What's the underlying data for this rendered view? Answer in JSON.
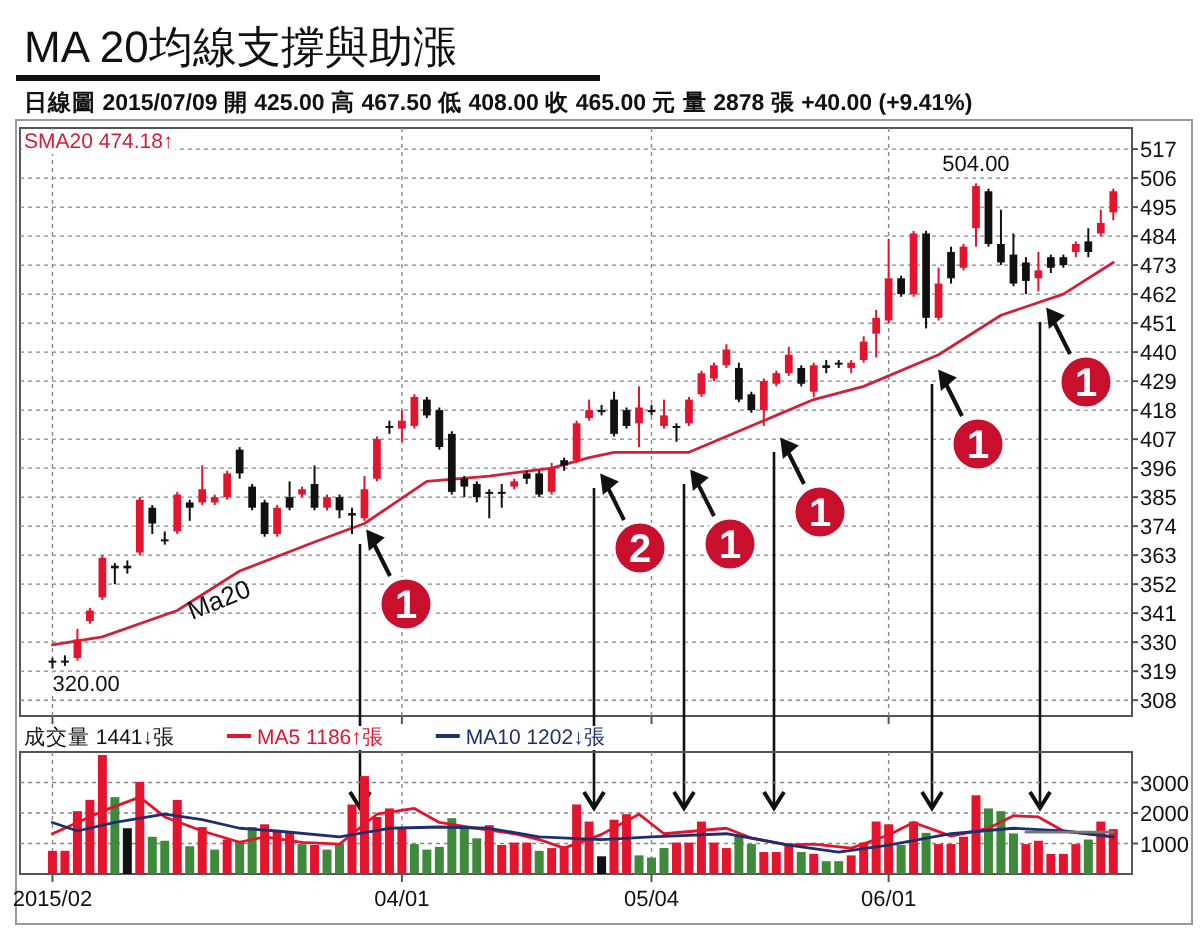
{
  "chart_data": [
    {
      "type": "candlestick",
      "title": "MA 20均線支撐與助漲",
      "subtitle": "日線圖  2015/07/09  開 425.00  高 467.50  低 408.00  收 465.00 元  量 2878 張  +40.00 (+9.41%)",
      "ohlc": [
        [
          323,
          324,
          320,
          323
        ],
        [
          323,
          325,
          321,
          323
        ],
        [
          324,
          335,
          323,
          331
        ],
        [
          338,
          343,
          337,
          342
        ],
        [
          347,
          363,
          346,
          362
        ],
        [
          359,
          360,
          352,
          358
        ],
        [
          359,
          361,
          356,
          358
        ],
        [
          364,
          385,
          363,
          384
        ],
        [
          381,
          382,
          371,
          375
        ],
        [
          369,
          372,
          367,
          369
        ],
        [
          372,
          387,
          371,
          386
        ],
        [
          383,
          384,
          376,
          381
        ],
        [
          383,
          397,
          382,
          388
        ],
        [
          383,
          386,
          382,
          385
        ],
        [
          385,
          395,
          384,
          394
        ],
        [
          403,
          404,
          392,
          394
        ],
        [
          389,
          390,
          380,
          381
        ],
        [
          383,
          384,
          370,
          371
        ],
        [
          371,
          382,
          370,
          381
        ],
        [
          385,
          391,
          380,
          381
        ],
        [
          386,
          389,
          385,
          388
        ],
        [
          390,
          397,
          380,
          381
        ],
        [
          381,
          386,
          380,
          385
        ],
        [
          385,
          386,
          377,
          380
        ],
        [
          379,
          381,
          371,
          378
        ],
        [
          377,
          393,
          376,
          388
        ],
        [
          392,
          408,
          391,
          407
        ],
        [
          412,
          414,
          409,
          412
        ],
        [
          411,
          418,
          406,
          414
        ],
        [
          412,
          424,
          411,
          423
        ],
        [
          422,
          423,
          415,
          416
        ],
        [
          418,
          419,
          403,
          404
        ],
        [
          409,
          410,
          386,
          387
        ],
        [
          392,
          393,
          385,
          389
        ],
        [
          390,
          391,
          383,
          385
        ],
        [
          387,
          388,
          377,
          387
        ],
        [
          387,
          390,
          381,
          387
        ],
        [
          389,
          392,
          388,
          391
        ],
        [
          394,
          395,
          390,
          392
        ],
        [
          394,
          395,
          385,
          386
        ],
        [
          387,
          398,
          386,
          396
        ],
        [
          399,
          400,
          395,
          397
        ],
        [
          399,
          414,
          398,
          413
        ],
        [
          415,
          422,
          414,
          418
        ],
        [
          418,
          420,
          416,
          418
        ],
        [
          422,
          425,
          408,
          409
        ],
        [
          418,
          419,
          411,
          412
        ],
        [
          413,
          427,
          404,
          419
        ],
        [
          418,
          420,
          416,
          418
        ],
        [
          412,
          422,
          411,
          416
        ],
        [
          412,
          413,
          406,
          412
        ],
        [
          413,
          423,
          412,
          422
        ],
        [
          424,
          433,
          423,
          432
        ],
        [
          430,
          436,
          429,
          435
        ],
        [
          435,
          443,
          434,
          441
        ],
        [
          434,
          436,
          421,
          422
        ],
        [
          424,
          425,
          417,
          418
        ],
        [
          418,
          430,
          412,
          429
        ],
        [
          428,
          433,
          427,
          432
        ],
        [
          432,
          442,
          431,
          439
        ],
        [
          434,
          435,
          427,
          428
        ],
        [
          425,
          436,
          423,
          435
        ],
        [
          435,
          437,
          432,
          434
        ],
        [
          436,
          437,
          434,
          436
        ],
        [
          434,
          437,
          432,
          436
        ],
        [
          437,
          446,
          436,
          444
        ],
        [
          447,
          456,
          438,
          453
        ],
        [
          452,
          483,
          451,
          468
        ],
        [
          468,
          469,
          461,
          462
        ],
        [
          462,
          486,
          461,
          485
        ],
        [
          485,
          486,
          449,
          453
        ],
        [
          453,
          472,
          452,
          466
        ],
        [
          478,
          480,
          466,
          468
        ],
        [
          472,
          481,
          471,
          480
        ],
        [
          487,
          504,
          480,
          503
        ],
        [
          501,
          502,
          480,
          481
        ],
        [
          481,
          494,
          473,
          474
        ],
        [
          477,
          485,
          465,
          466
        ],
        [
          474,
          476,
          462,
          467
        ],
        [
          468,
          478,
          463,
          471
        ],
        [
          476,
          477,
          470,
          472
        ],
        [
          476,
          477,
          472,
          473
        ],
        [
          478,
          482,
          476,
          481
        ],
        [
          482,
          487,
          476,
          478
        ],
        [
          485,
          494,
          484,
          489
        ],
        [
          493,
          502,
          490,
          501
        ]
      ],
      "colors": [
        "#111111",
        "#111111",
        "#e3142d",
        "#e3142d",
        "#e3142d",
        "#111111",
        "#111111",
        "#e3142d",
        "#111111",
        "#111111",
        "#e3142d",
        "#111111",
        "#e3142d",
        "#e3142d",
        "#e3142d",
        "#111111",
        "#111111",
        "#111111",
        "#e3142d",
        "#111111",
        "#e3142d",
        "#111111",
        "#e3142d",
        "#111111",
        "#111111",
        "#e3142d",
        "#e3142d",
        "#111111",
        "#e3142d",
        "#e3142d",
        "#111111",
        "#111111",
        "#111111",
        "#111111",
        "#111111",
        "#111111",
        "#111111",
        "#e3142d",
        "#111111",
        "#111111",
        "#e3142d",
        "#111111",
        "#e3142d",
        "#e3142d",
        "#111111",
        "#111111",
        "#111111",
        "#e3142d",
        "#111111",
        "#e3142d",
        "#111111",
        "#e3142d",
        "#e3142d",
        "#e3142d",
        "#e3142d",
        "#111111",
        "#111111",
        "#e3142d",
        "#e3142d",
        "#e3142d",
        "#111111",
        "#e3142d",
        "#111111",
        "#111111",
        "#e3142d",
        "#e3142d",
        "#e3142d",
        "#e3142d",
        "#111111",
        "#e3142d",
        "#111111",
        "#e3142d",
        "#111111",
        "#e3142d",
        "#e3142d",
        "#111111",
        "#111111",
        "#111111",
        "#111111",
        "#e3142d",
        "#111111",
        "#111111",
        "#e3142d",
        "#111111",
        "#e3142d",
        "#e3142d"
      ],
      "ylim": [
        302,
        525
      ],
      "yticks": [
        308,
        319,
        330,
        341,
        352,
        363,
        374,
        385,
        396,
        407,
        418,
        429,
        440,
        451,
        462,
        473,
        484,
        495,
        506,
        517
      ],
      "tick_labels": "y",
      "grid": true,
      "legend": "top left",
      "series": [
        {
          "type": "line",
          "name": "SMA20 474.18↑",
          "color": "#d0203a",
          "values": [
            329,
            null,
            null,
            null,
            332,
            null,
            null,
            null,
            null,
            null,
            342,
            null,
            null,
            null,
            null,
            357,
            null,
            null,
            null,
            null,
            null,
            368,
            null,
            null,
            null,
            375,
            null,
            null,
            null,
            null,
            391,
            null,
            null,
            null,
            null,
            393,
            null,
            null,
            null,
            null,
            396,
            null,
            null,
            400,
            null,
            402,
            null,
            null,
            null,
            null,
            null,
            402,
            null,
            406,
            null,
            null,
            null,
            null,
            416,
            null,
            null,
            422,
            null,
            null,
            null,
            427,
            null,
            null,
            null,
            null,
            null,
            439,
            null,
            null,
            null,
            null,
            454,
            null,
            null,
            null,
            null,
            462,
            null,
            null,
            null,
            474
          ]
        }
      ],
      "annotations": [
        "Ma20",
        "504.00",
        "320.00",
        "1",
        "2",
        "1",
        "1",
        "1",
        "1"
      ]
    },
    {
      "type": "bar",
      "categories": [
        "2015/02",
        null,
        null,
        null,
        null,
        null,
        null,
        null,
        null,
        null,
        null,
        null,
        null,
        null,
        null,
        null,
        null,
        null,
        null,
        null,
        null,
        null,
        null,
        null,
        null,
        null,
        null,
        null,
        "04/01",
        null,
        null,
        null,
        null,
        null,
        null,
        null,
        null,
        null,
        null,
        null,
        null,
        null,
        null,
        null,
        null,
        null,
        null,
        null,
        "05/04",
        null,
        null,
        null,
        null,
        null,
        null,
        null,
        null,
        null,
        null,
        null,
        null,
        null,
        null,
        null,
        null,
        null,
        null,
        "06/01",
        null,
        null,
        null,
        null,
        null,
        null,
        null,
        null,
        null,
        null,
        null,
        null,
        null,
        null,
        null,
        null,
        null,
        null
      ],
      "ylim": [
        0,
        4000
      ],
      "yticks": [
        1000,
        2000,
        3000
      ],
      "grid": true,
      "legend": "top left",
      "series": [
        {
          "type": "bar",
          "name": "成交量 1441↓張",
          "values": [
            760,
            760,
            2060,
            2430,
            3900,
            2520,
            1500,
            3020,
            1220,
            1090,
            2430,
            910,
            1540,
            800,
            1130,
            1090,
            1540,
            1630,
            1410,
            1410,
            980,
            950,
            800,
            980,
            2280,
            3210,
            1870,
            2150,
            1500,
            980,
            800,
            890,
            1830,
            1500,
            1170,
            1600,
            950,
            1030,
            1030,
            760,
            850,
            910,
            2280,
            1720,
            580,
            1780,
            1960,
            610,
            540,
            850,
            1030,
            1030,
            1720,
            1030,
            850,
            1300,
            980,
            720,
            720,
            980,
            720,
            660,
            420,
            420,
            610,
            1030,
            1720,
            1630,
            950,
            1720,
            1350,
            980,
            980,
            1220,
            2580,
            2150,
            2060,
            1330,
            980,
            1090,
            660,
            660,
            980,
            1130,
            1720,
            1470
          ],
          "colors": [
            "#e3142d",
            "#e3142d",
            "#e3142d",
            "#e3142d",
            "#e3142d",
            "#3e8a3a",
            "#111111",
            "#e3142d",
            "#3e8a3a",
            "#3e8a3a",
            "#e3142d",
            "#3e8a3a",
            "#e3142d",
            "#3e8a3a",
            "#e3142d",
            "#3e8a3a",
            "#3e8a3a",
            "#e3142d",
            "#e3142d",
            "#e3142d",
            "#3e8a3a",
            "#e3142d",
            "#3e8a3a",
            "#3e8a3a",
            "#e3142d",
            "#e3142d",
            "#e3142d",
            "#e3142d",
            "#e3142d",
            "#3e8a3a",
            "#3e8a3a",
            "#3e8a3a",
            "#3e8a3a",
            "#3e8a3a",
            "#3e8a3a",
            "#e3142d",
            "#e3142d",
            "#e3142d",
            "#e3142d",
            "#3e8a3a",
            "#e3142d",
            "#e3142d",
            "#e3142d",
            "#e3142d",
            "#111111",
            "#e3142d",
            "#e3142d",
            "#3e8a3a",
            "#3e8a3a",
            "#3e8a3a",
            "#e3142d",
            "#e3142d",
            "#e3142d",
            "#e3142d",
            "#e3142d",
            "#3e8a3a",
            "#3e8a3a",
            "#e3142d",
            "#e3142d",
            "#e3142d",
            "#3e8a3a",
            "#e3142d",
            "#3e8a3a",
            "#3e8a3a",
            "#e3142d",
            "#e3142d",
            "#e3142d",
            "#e3142d",
            "#3e8a3a",
            "#e3142d",
            "#3e8a3a",
            "#e3142d",
            "#e3142d",
            "#e3142d",
            "#e3142d",
            "#3e8a3a",
            "#3e8a3a",
            "#3e8a3a",
            "#e3142d",
            "#e3142d",
            "#e3142d",
            "#e3142d",
            "#e3142d",
            "#3e8a3a",
            "#e3142d",
            "#e3142d"
          ]
        },
        {
          "type": "line",
          "name": "MA5 1186↑張",
          "color": "#e3142d",
          "values": [
            1320,
            null,
            null,
            null,
            2060,
            null,
            null,
            2520,
            null,
            1870,
            null,
            null,
            1410,
            null,
            null,
            1040,
            null,
            1220,
            null,
            null,
            1040,
            null,
            null,
            980,
            null,
            null,
            1960,
            null,
            null,
            2150,
            null,
            1690,
            null,
            null,
            1500,
            null,
            null,
            1320,
            null,
            1130,
            null,
            850,
            null,
            null,
            1300,
            null,
            null,
            1960,
            null,
            1320,
            null,
            null,
            null,
            null,
            1500,
            null,
            1180,
            null,
            null,
            950,
            null,
            980,
            null,
            null,
            850,
            null,
            null,
            1280,
            null,
            1690,
            null,
            null,
            1240,
            null,
            null,
            1500,
            null,
            1910,
            null,
            1870,
            null,
            1410,
            null,
            1320,
            null,
            1220
          ]
        },
        {
          "type": "line",
          "name": "MA10 1202↓張",
          "color": "#1f2f6e",
          "values": [
            1690,
            null,
            1410,
            null,
            null,
            1690,
            null,
            null,
            null,
            1960,
            null,
            null,
            1780,
            null,
            null,
            1500,
            null,
            null,
            1410,
            null,
            null,
            null,
            null,
            1220,
            null,
            null,
            null,
            1500,
            null,
            null,
            null,
            1540,
            null,
            null,
            null,
            1500,
            null,
            null,
            null,
            1220,
            null,
            null,
            null,
            null,
            1130,
            null,
            null,
            null,
            1220,
            null,
            null,
            null,
            null,
            null,
            1320,
            null,
            null,
            null,
            null,
            950,
            null,
            null,
            null,
            720,
            null,
            null,
            null,
            950,
            null,
            null,
            null,
            null,
            1320,
            null,
            null,
            null,
            null,
            1500,
            null,
            null,
            null,
            1410,
            null,
            null,
            null,
            1220
          ]
        },
        {
          "type": "line",
          "color": "#777777",
          "values": [
            null,
            null,
            null,
            null,
            null,
            null,
            null,
            null,
            null,
            null,
            null,
            null,
            null,
            null,
            null,
            null,
            null,
            null,
            null,
            null,
            null,
            null,
            null,
            null,
            null,
            null,
            null,
            null,
            null,
            null,
            null,
            null,
            null,
            null,
            null,
            null,
            null,
            null,
            null,
            null,
            null,
            null,
            null,
            null,
            null,
            null,
            null,
            null,
            null,
            null,
            null,
            null,
            null,
            null,
            null,
            null,
            null,
            null,
            null,
            null,
            null,
            null,
            null,
            null,
            null,
            null,
            null,
            null,
            null,
            null,
            null,
            null,
            null,
            null,
            null,
            null,
            null,
            null,
            1370,
            null,
            null,
            null,
            null,
            null,
            null,
            1370
          ]
        }
      ]
    }
  ]
}
